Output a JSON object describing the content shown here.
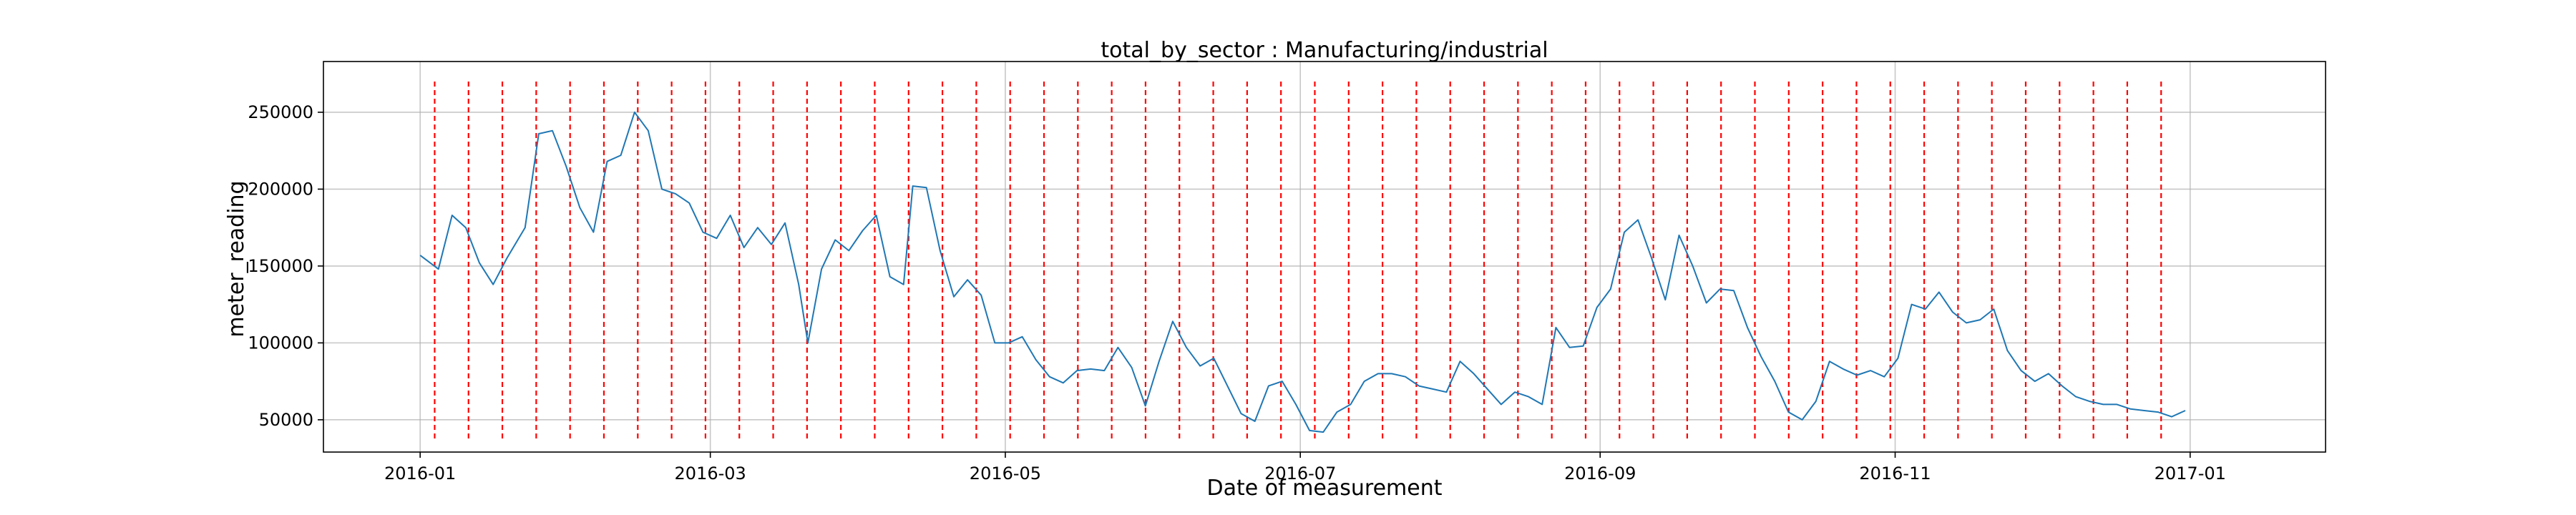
{
  "chart_data": {
    "type": "line",
    "title": "total_by_sector : Manufacturing/industrial",
    "xlabel": "Date of measurement",
    "ylabel": "meter_reading",
    "xlim": [
      "2015-12-12",
      "2017-01-29"
    ],
    "ylim": [
      29000,
      283000
    ],
    "x_ticks": [
      "2016-01",
      "2016-03",
      "2016-05",
      "2016-07",
      "2016-09",
      "2016-11",
      "2017-01"
    ],
    "y_ticks": [
      50000,
      100000,
      150000,
      200000,
      250000
    ],
    "y_tick_labels": [
      "50000",
      "100000",
      "150000",
      "200000",
      "250000"
    ],
    "grid": true,
    "series": [
      {
        "color": "#1f77b4",
        "points": [
          [
            "2016-01-01",
            157000
          ],
          [
            "2016-01-05",
            148000
          ],
          [
            "2016-01-08",
            183000
          ],
          [
            "2016-01-11",
            175000
          ],
          [
            "2016-01-14",
            152000
          ],
          [
            "2016-01-17",
            138000
          ],
          [
            "2016-01-20",
            155000
          ],
          [
            "2016-01-24",
            175000
          ],
          [
            "2016-01-27",
            236000
          ],
          [
            "2016-01-30",
            238000
          ],
          [
            "2016-02-02",
            215000
          ],
          [
            "2016-02-05",
            188000
          ],
          [
            "2016-02-08",
            172000
          ],
          [
            "2016-02-11",
            218000
          ],
          [
            "2016-02-14",
            222000
          ],
          [
            "2016-02-17",
            250000
          ],
          [
            "2016-02-20",
            238000
          ],
          [
            "2016-02-23",
            200000
          ],
          [
            "2016-02-26",
            197000
          ],
          [
            "2016-02-29",
            191000
          ],
          [
            "2016-03-03",
            172000
          ],
          [
            "2016-03-06",
            168000
          ],
          [
            "2016-03-09",
            183000
          ],
          [
            "2016-03-12",
            162000
          ],
          [
            "2016-03-15",
            175000
          ],
          [
            "2016-03-18",
            164000
          ],
          [
            "2016-03-21",
            178000
          ],
          [
            "2016-03-24",
            138000
          ],
          [
            "2016-03-26",
            100000
          ],
          [
            "2016-03-29",
            148000
          ],
          [
            "2016-04-01",
            167000
          ],
          [
            "2016-04-04",
            160000
          ],
          [
            "2016-04-07",
            173000
          ],
          [
            "2016-04-10",
            183000
          ],
          [
            "2016-04-13",
            143000
          ],
          [
            "2016-04-16",
            138000
          ],
          [
            "2016-04-18",
            202000
          ],
          [
            "2016-04-21",
            201000
          ],
          [
            "2016-04-24",
            160000
          ],
          [
            "2016-04-27",
            130000
          ],
          [
            "2016-04-30",
            141000
          ],
          [
            "2016-05-03",
            131000
          ],
          [
            "2016-05-06",
            100000
          ],
          [
            "2016-05-09",
            100000
          ],
          [
            "2016-05-12",
            104000
          ],
          [
            "2016-05-15",
            89000
          ],
          [
            "2016-05-18",
            78000
          ],
          [
            "2016-05-21",
            74000
          ],
          [
            "2016-05-24",
            82000
          ],
          [
            "2016-05-27",
            83000
          ],
          [
            "2016-05-30",
            82000
          ],
          [
            "2016-06-02",
            97000
          ],
          [
            "2016-06-05",
            84000
          ],
          [
            "2016-06-08",
            59000
          ],
          [
            "2016-06-11",
            88000
          ],
          [
            "2016-06-14",
            114000
          ],
          [
            "2016-06-17",
            97000
          ],
          [
            "2016-06-20",
            85000
          ],
          [
            "2016-06-23",
            90000
          ],
          [
            "2016-06-26",
            72000
          ],
          [
            "2016-06-29",
            54000
          ],
          [
            "2016-07-02",
            49000
          ],
          [
            "2016-07-05",
            72000
          ],
          [
            "2016-07-08",
            75000
          ],
          [
            "2016-07-11",
            60000
          ],
          [
            "2016-07-14",
            43000
          ],
          [
            "2016-07-17",
            42000
          ],
          [
            "2016-07-20",
            55000
          ],
          [
            "2016-07-23",
            60000
          ],
          [
            "2016-07-26",
            75000
          ],
          [
            "2016-07-29",
            80000
          ],
          [
            "2016-08-01",
            80000
          ],
          [
            "2016-08-04",
            78000
          ],
          [
            "2016-08-07",
            72000
          ],
          [
            "2016-08-10",
            70000
          ],
          [
            "2016-08-13",
            68000
          ],
          [
            "2016-08-16",
            88000
          ],
          [
            "2016-08-19",
            80000
          ],
          [
            "2016-08-22",
            70000
          ],
          [
            "2016-08-25",
            60000
          ],
          [
            "2016-08-28",
            68000
          ],
          [
            "2016-08-31",
            65000
          ],
          [
            "2016-09-03",
            60000
          ],
          [
            "2016-09-06",
            110000
          ],
          [
            "2016-09-09",
            97000
          ],
          [
            "2016-09-12",
            98000
          ],
          [
            "2016-09-15",
            123000
          ],
          [
            "2016-09-18",
            135000
          ],
          [
            "2016-09-21",
            172000
          ],
          [
            "2016-09-24",
            180000
          ],
          [
            "2016-09-27",
            155000
          ],
          [
            "2016-09-30",
            128000
          ],
          [
            "2016-10-03",
            170000
          ],
          [
            "2016-10-06",
            150000
          ],
          [
            "2016-10-09",
            126000
          ],
          [
            "2016-10-12",
            135000
          ],
          [
            "2016-10-15",
            134000
          ],
          [
            "2016-10-18",
            110000
          ],
          [
            "2016-10-21",
            91000
          ],
          [
            "2016-10-24",
            75000
          ],
          [
            "2016-10-27",
            55000
          ],
          [
            "2016-10-30",
            50000
          ],
          [
            "2016-11-02",
            62000
          ],
          [
            "2016-11-05",
            88000
          ],
          [
            "2016-11-08",
            83000
          ],
          [
            "2016-11-11",
            79000
          ],
          [
            "2016-11-14",
            82000
          ],
          [
            "2016-11-17",
            78000
          ],
          [
            "2016-11-20",
            90000
          ],
          [
            "2016-11-23",
            125000
          ],
          [
            "2016-11-26",
            122000
          ],
          [
            "2016-11-29",
            133000
          ],
          [
            "2016-12-02",
            120000
          ],
          [
            "2016-12-05",
            113000
          ],
          [
            "2016-12-08",
            115000
          ],
          [
            "2016-12-11",
            122000
          ],
          [
            "2016-12-14",
            95000
          ],
          [
            "2016-12-17",
            82000
          ],
          [
            "2016-12-20",
            75000
          ],
          [
            "2016-12-23",
            80000
          ],
          [
            "2016-12-26",
            72000
          ],
          [
            "2016-12-29",
            65000
          ],
          [
            "2017-01-01",
            62000
          ],
          [
            "2017-01-04",
            60000
          ],
          [
            "2017-01-07",
            60000
          ],
          [
            "2017-01-10",
            57000
          ],
          [
            "2017-01-13",
            56000
          ],
          [
            "2017-01-16",
            55000
          ],
          [
            "2017-01-19",
            52000
          ],
          [
            "2017-01-22",
            56000
          ]
        ],
        "note_series_scaled_to_axis": "2016"
      }
    ],
    "event_lines": {
      "color": "#ff0000",
      "style": "dashed",
      "dates": [
        "2016-01-04",
        "2016-01-11",
        "2016-01-18",
        "2016-01-25",
        "2016-02-01",
        "2016-02-08",
        "2016-02-15",
        "2016-02-22",
        "2016-02-29",
        "2016-03-07",
        "2016-03-14",
        "2016-03-21",
        "2016-03-28",
        "2016-04-04",
        "2016-04-11",
        "2016-04-18",
        "2016-04-25",
        "2016-05-02",
        "2016-05-09",
        "2016-05-16",
        "2016-05-23",
        "2016-05-30",
        "2016-06-06",
        "2016-06-13",
        "2016-06-20",
        "2016-06-27",
        "2016-07-04",
        "2016-07-11",
        "2016-07-18",
        "2016-07-25",
        "2016-08-01",
        "2016-08-08",
        "2016-08-15",
        "2016-08-22",
        "2016-08-29",
        "2016-09-05",
        "2016-09-12",
        "2016-09-19",
        "2016-09-26",
        "2016-10-03",
        "2016-10-10",
        "2016-10-17",
        "2016-10-24",
        "2016-10-31",
        "2016-11-07",
        "2016-11-14",
        "2016-11-21",
        "2016-11-28",
        "2016-12-05",
        "2016-12-12",
        "2016-12-19",
        "2016-12-26"
      ]
    }
  }
}
